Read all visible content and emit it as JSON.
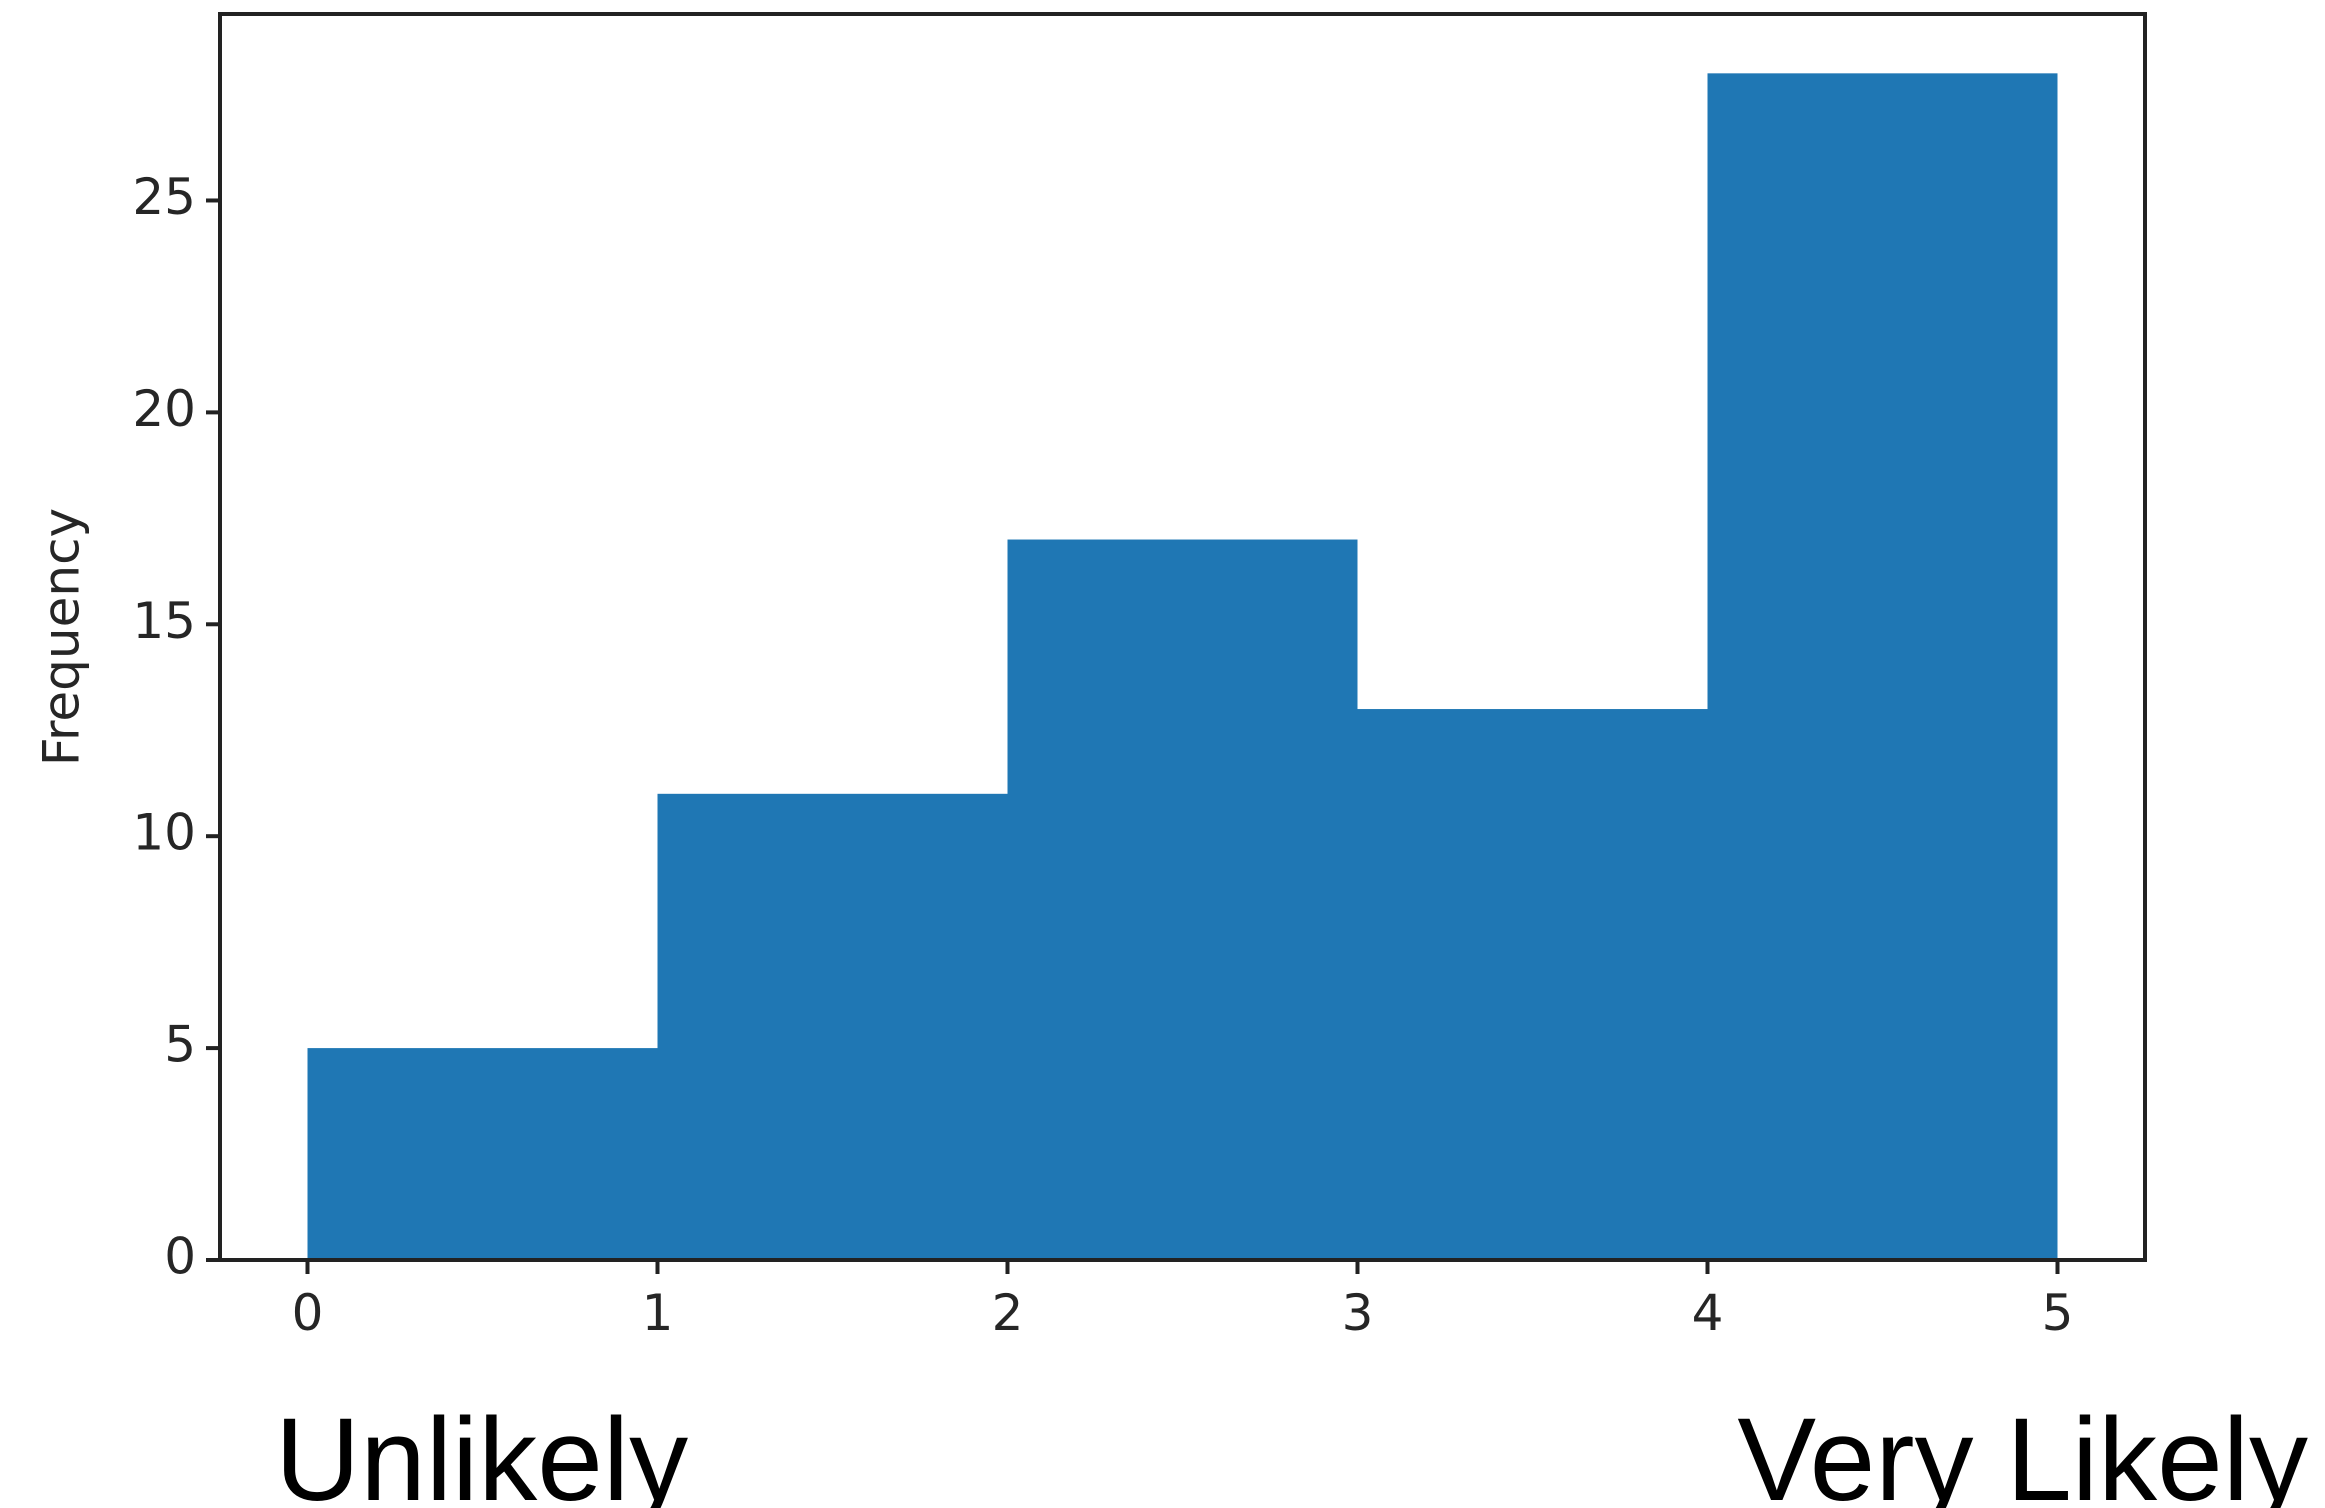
{
  "chart_data": {
    "type": "bar",
    "bins": [
      {
        "start": 0,
        "end": 1,
        "value": 5
      },
      {
        "start": 1,
        "end": 2,
        "value": 11
      },
      {
        "start": 2,
        "end": 3,
        "value": 17
      },
      {
        "start": 3,
        "end": 4,
        "value": 13
      },
      {
        "start": 4,
        "end": 5,
        "value": 28
      }
    ],
    "x_ticks": [
      "0",
      "1",
      "2",
      "3",
      "4",
      "5"
    ],
    "y_ticks": [
      "0",
      "5",
      "10",
      "15",
      "20",
      "25"
    ],
    "ylabel": "Frequency",
    "xlim": [
      -0.25,
      5.25
    ],
    "ylim": [
      0,
      29.4
    ],
    "grid": false,
    "bar_color": "#1f77b4",
    "annotations": {
      "left": "Unlikely",
      "right": "Very Likely"
    }
  }
}
